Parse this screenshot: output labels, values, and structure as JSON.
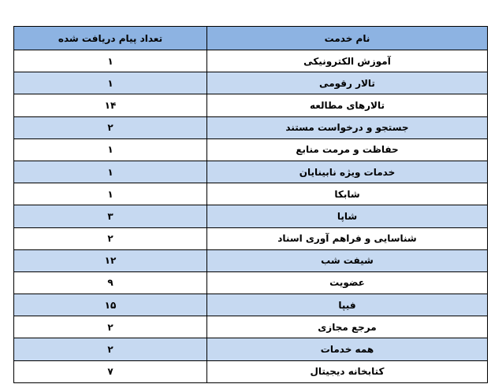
{
  "table": {
    "headers": {
      "service": "نام خدمت",
      "count": "تعداد پیام دریافت شده"
    },
    "header_color": "#8db3e2",
    "alt_row_color": "#c6d9f1",
    "rows": [
      {
        "service": "آموزش الکترونیکی",
        "count": "۱"
      },
      {
        "service": "تالار رقومی",
        "count": "۱"
      },
      {
        "service": "تالارهای مطالعه",
        "count": "۱۴"
      },
      {
        "service": "جستجو و درخواست مستند",
        "count": "۲"
      },
      {
        "service": "حفاظت و مرمت منابع",
        "count": "۱"
      },
      {
        "service": "خدمات ویژه نابینایان",
        "count": "۱"
      },
      {
        "service": "شابکا",
        "count": "۱"
      },
      {
        "service": "شاپا",
        "count": "۳"
      },
      {
        "service": "شناسایی و فراهم آوری اسناد",
        "count": "۲"
      },
      {
        "service": "شیفت شب",
        "count": "۱۲"
      },
      {
        "service": "عضویت",
        "count": "۹"
      },
      {
        "service": "فیپا",
        "count": "۱۵"
      },
      {
        "service": "مرجع مجازی",
        "count": "۲"
      },
      {
        "service": "همه خدمات",
        "count": "۲"
      },
      {
        "service": "کتابخانه دیجیتال",
        "count": "۷"
      }
    ]
  }
}
